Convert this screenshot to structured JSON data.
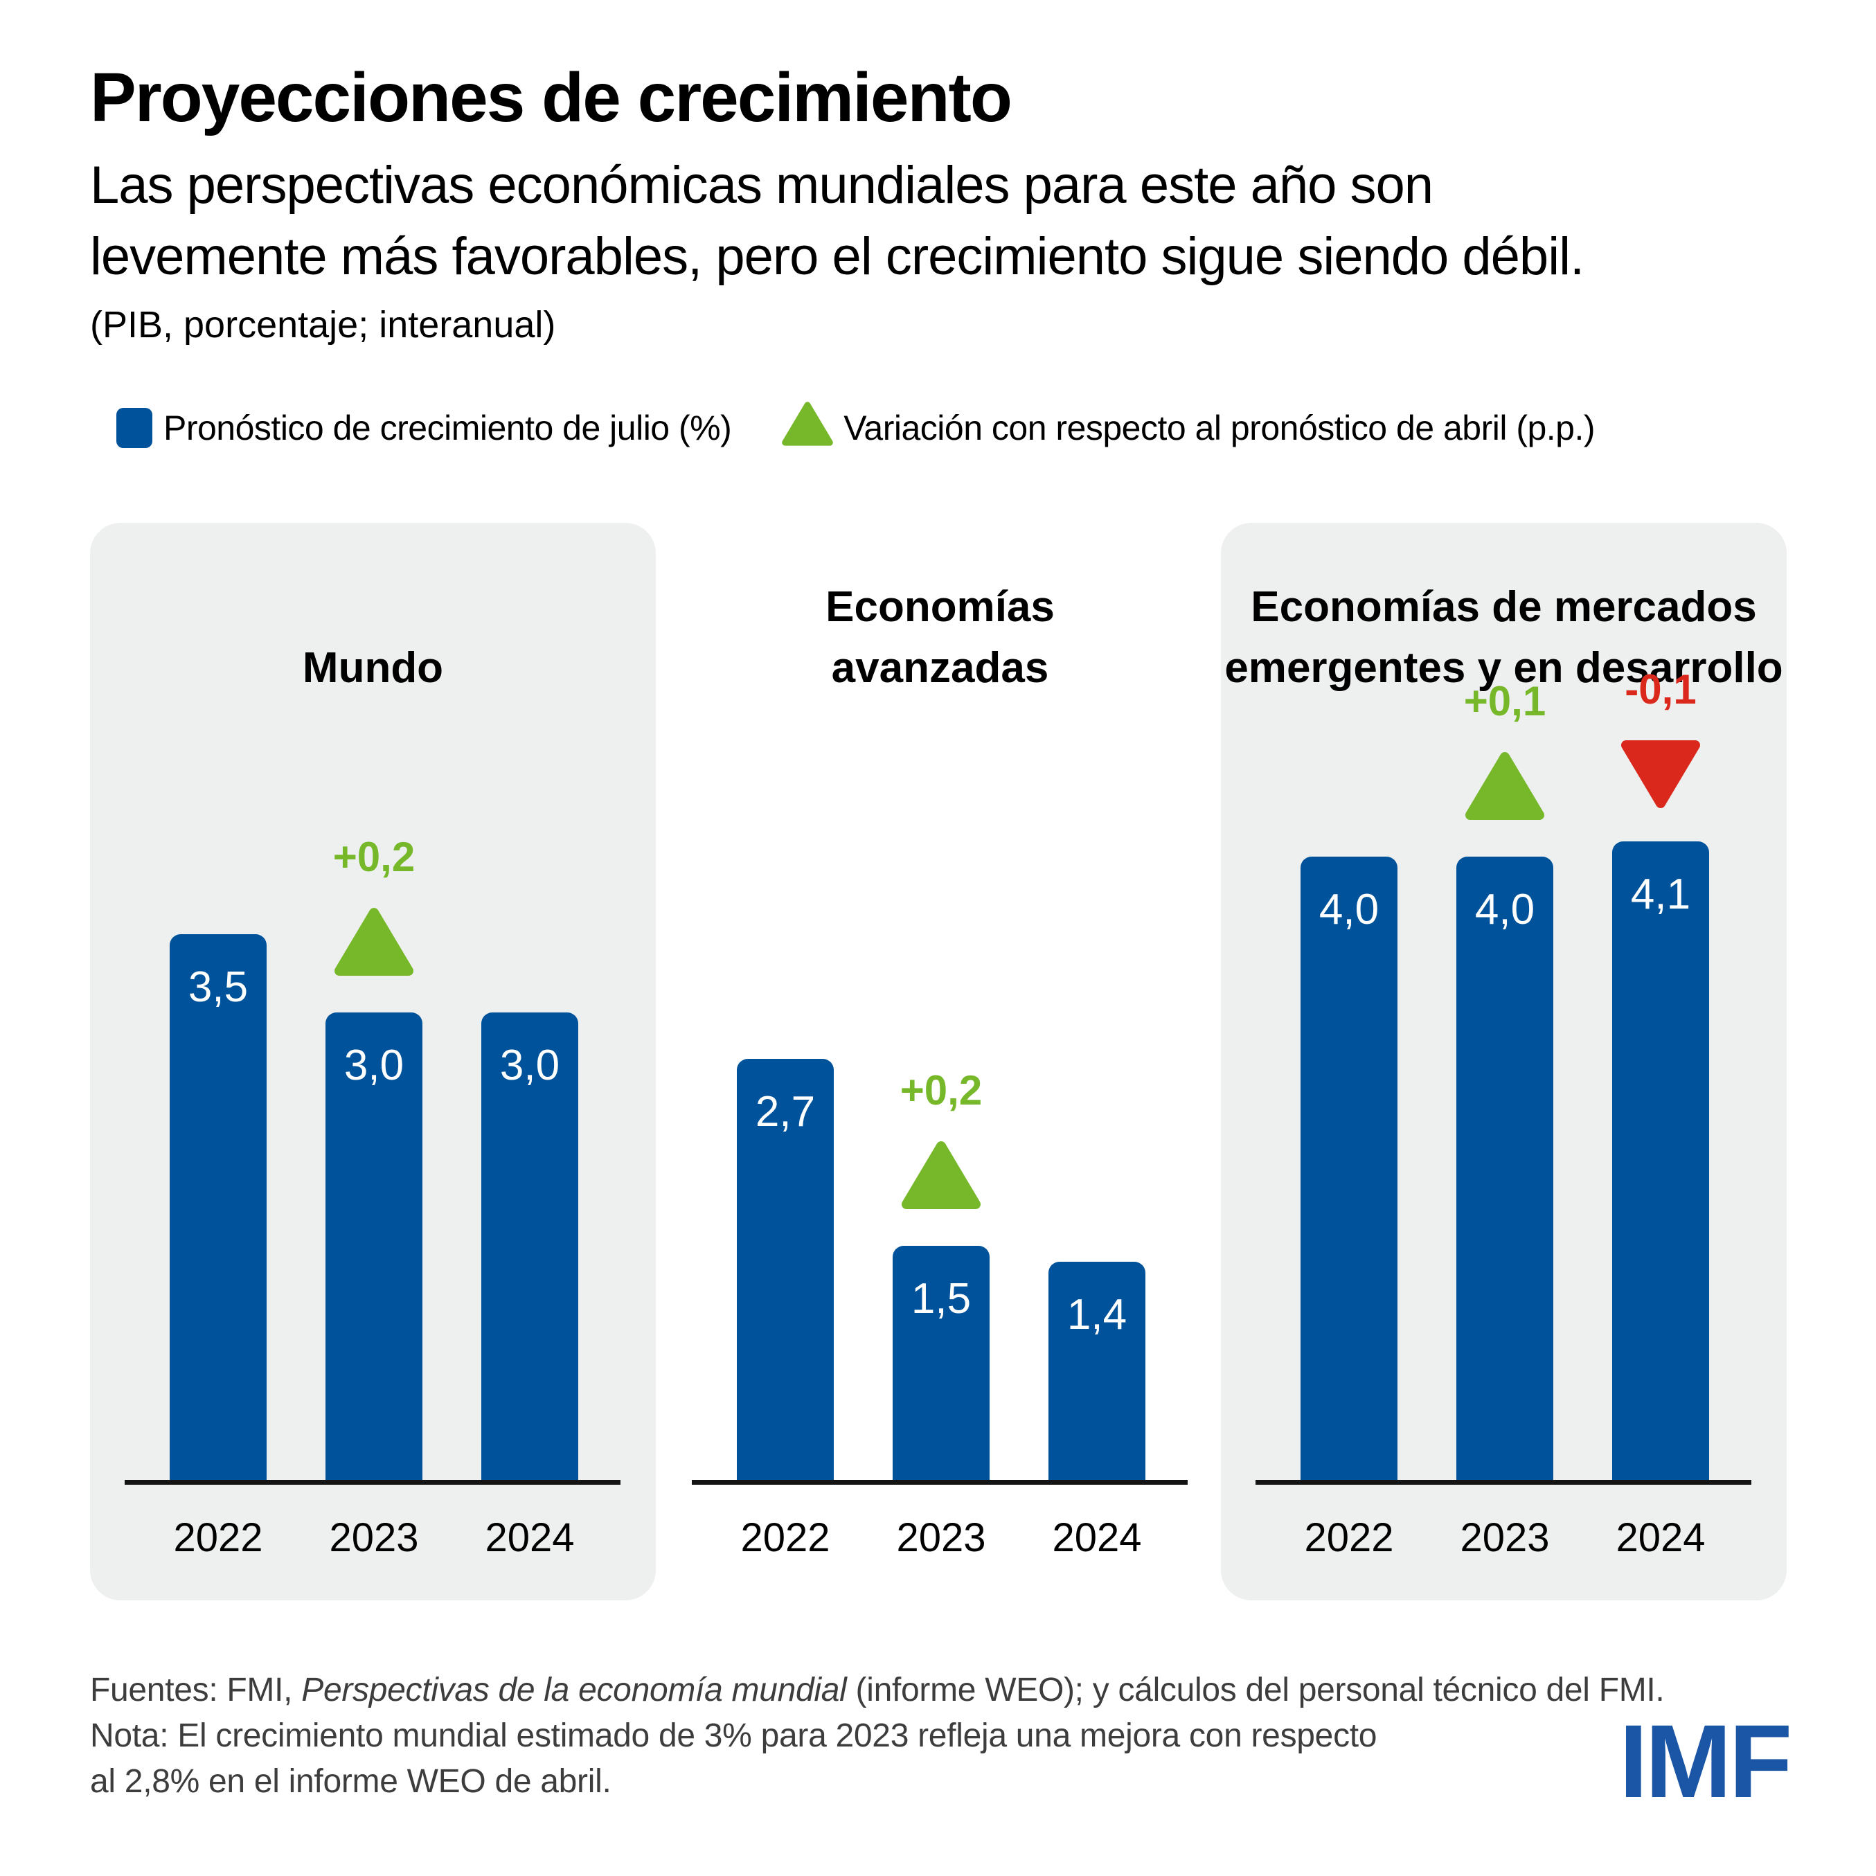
{
  "header": {
    "title": "Proyecciones de crecimiento",
    "subtitle_line1": "Las perspectivas económicas mundiales para este año son",
    "subtitle_line2": "levemente más favorables, pero el crecimiento sigue siendo débil.",
    "unit_note": "(PIB, porcentaje; interanual)"
  },
  "colors": {
    "bar_blue": "#00539B",
    "revision_up_green": "#76B82A",
    "revision_down_red": "#DA291C",
    "panel_gray": "#EEF0EF",
    "logo_blue": "#1B55A6"
  },
  "legend": {
    "forecast_label": "Pronóstico de crecimiento de julio (%)",
    "revision_label": "Variación con respecto al pronóstico de abril (p.p.)"
  },
  "panels": [
    {
      "id": "mundo",
      "title_lines": [
        "Mundo"
      ],
      "background": "gray",
      "bars": [
        {
          "year": "2022",
          "value": 3.5,
          "label": "3,5"
        },
        {
          "year": "2023",
          "value": 3.0,
          "label": "3,0",
          "revision": {
            "dir": "up",
            "label": "+0,2"
          }
        },
        {
          "year": "2024",
          "value": 3.0,
          "label": "3,0"
        }
      ]
    },
    {
      "id": "economias-avanzadas",
      "title_lines": [
        "Economías",
        "avanzadas"
      ],
      "background": "none",
      "bars": [
        {
          "year": "2022",
          "value": 2.7,
          "label": "2,7"
        },
        {
          "year": "2023",
          "value": 1.5,
          "label": "1,5",
          "revision": {
            "dir": "up",
            "label": "+0,2"
          }
        },
        {
          "year": "2024",
          "value": 1.4,
          "label": "1,4"
        }
      ]
    },
    {
      "id": "mercados-emergentes",
      "title_lines": [
        "Economías de mercados",
        "emergentes y en desarrollo"
      ],
      "background": "gray",
      "bars": [
        {
          "year": "2022",
          "value": 4.0,
          "label": "4,0"
        },
        {
          "year": "2023",
          "value": 4.0,
          "label": "4,0",
          "revision": {
            "dir": "up",
            "label": "+0,1"
          }
        },
        {
          "year": "2024",
          "value": 4.1,
          "label": "4,1",
          "revision": {
            "dir": "down",
            "label": "-0,1"
          }
        }
      ]
    }
  ],
  "footer": {
    "sources_prefix": "Fuentes: FMI, ",
    "source_title": "Perspectivas de la economía mundial",
    "sources_suffix": " (informe WEO); y cálculos del personal técnico del FMI.",
    "note_line1": "Nota: El crecimiento mundial estimado de 3% para 2023 refleja una mejora con respecto",
    "note_line2": "al 2,8% en el informe WEO de abril.",
    "logo": "IMF"
  },
  "chart_data": {
    "type": "bar",
    "title": "Proyecciones de crecimiento",
    "subtitle": "Las perspectivas económicas mundiales para este año son levemente más favorables, pero el crecimiento sigue siendo débil.",
    "unit": "PIB, porcentaje; interanual",
    "categories": [
      "2022",
      "2023",
      "2024"
    ],
    "series": [
      {
        "name": "Mundo",
        "values": [
          3.5,
          3.0,
          3.0
        ],
        "revision_vs_april_pp": [
          null,
          0.2,
          null
        ]
      },
      {
        "name": "Economías avanzadas",
        "values": [
          2.7,
          1.5,
          1.4
        ],
        "revision_vs_april_pp": [
          null,
          0.2,
          null
        ]
      },
      {
        "name": "Economías de mercados emergentes y en desarrollo",
        "values": [
          4.0,
          4.0,
          4.1
        ],
        "revision_vs_april_pp": [
          null,
          0.1,
          -0.1
        ]
      }
    ],
    "legend_entries": [
      "Pronóstico de crecimiento de julio (%)",
      "Variación con respecto al pronóstico de abril (p.p.)"
    ],
    "legend_position": "top",
    "grid": false,
    "ylim": [
      0,
      4.5
    ],
    "value_labels_shown": true
  }
}
